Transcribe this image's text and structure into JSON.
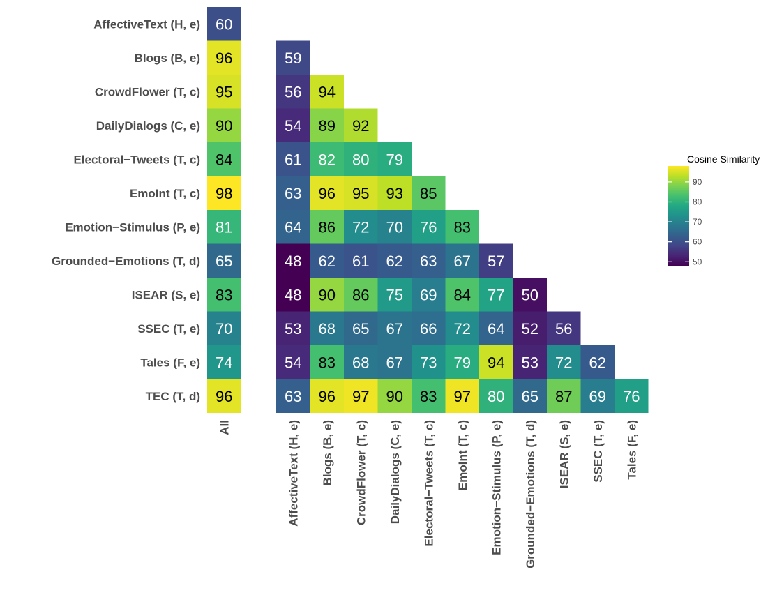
{
  "chart_data": {
    "type": "heatmap",
    "legend": {
      "title": "Cosine Similarity",
      "ticks": [
        50,
        60,
        70,
        80,
        90
      ],
      "range": [
        48,
        98
      ],
      "position": "right"
    },
    "rows": [
      "AffectiveText (H, e)",
      "Blogs (B, e)",
      "CrowdFlower (T, c)",
      "DailyDialogs (C, e)",
      "Electoral−Tweets (T, c)",
      "EmoInt (T, c)",
      "Emotion−Stimulus (P, e)",
      "Grounded−Emotions (T, d)",
      "ISEAR (S, e)",
      "SSEC (T, e)",
      "Tales (F, e)",
      "TEC (T, d)"
    ],
    "all_label": "All",
    "all_values": [
      60,
      96,
      95,
      90,
      84,
      98,
      81,
      65,
      83,
      70,
      74,
      96
    ],
    "columns": [
      "AffectiveText (H, e)",
      "Blogs (B, e)",
      "CrowdFlower (T, c)",
      "DailyDialogs (C, e)",
      "Electoral−Tweets (T, c)",
      "EmoInt (T, c)",
      "Emotion−Stimulus (P, e)",
      "Grounded−Emotions (T, d)",
      "ISEAR (S, e)",
      "SSEC (T, e)",
      "Tales (F, e)"
    ],
    "matrix": [
      [],
      [
        59
      ],
      [
        56,
        94
      ],
      [
        54,
        89,
        92
      ],
      [
        61,
        82,
        80,
        79
      ],
      [
        63,
        96,
        95,
        93,
        85
      ],
      [
        64,
        86,
        72,
        70,
        76,
        83
      ],
      [
        48,
        62,
        61,
        62,
        63,
        67,
        57
      ],
      [
        48,
        90,
        86,
        75,
        69,
        84,
        77,
        50
      ],
      [
        53,
        68,
        65,
        67,
        66,
        72,
        64,
        52,
        56
      ],
      [
        54,
        83,
        68,
        67,
        73,
        79,
        94,
        53,
        72,
        62
      ],
      [
        63,
        96,
        97,
        90,
        83,
        97,
        80,
        65,
        87,
        69,
        76
      ]
    ]
  }
}
